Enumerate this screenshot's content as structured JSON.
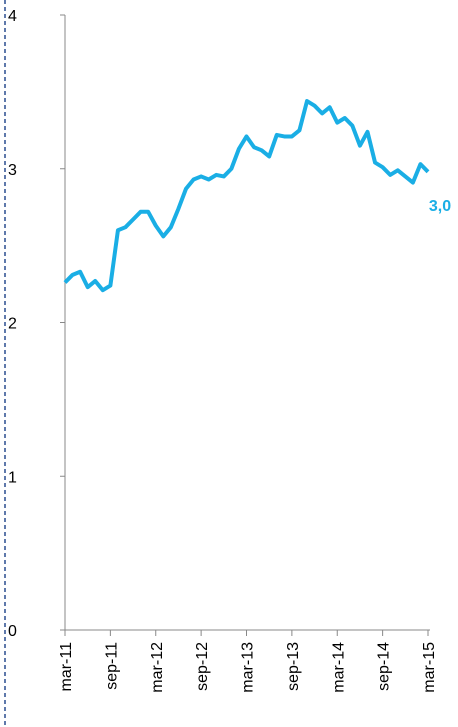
{
  "chart_data": {
    "type": "line",
    "categories": [
      "mar-11",
      null,
      null,
      null,
      null,
      null,
      "sep-11",
      null,
      null,
      null,
      null,
      null,
      "mar-12",
      null,
      null,
      null,
      null,
      null,
      "sep-12",
      null,
      null,
      null,
      null,
      null,
      "mar-13",
      null,
      null,
      null,
      null,
      null,
      "sep-13",
      null,
      null,
      null,
      null,
      null,
      "mar-14",
      null,
      null,
      null,
      null,
      null,
      "sep-14",
      null,
      null,
      null,
      null,
      null,
      "mar-15"
    ],
    "series": [
      {
        "color": "#1aaee5",
        "values": [
          2.26,
          2.31,
          2.33,
          2.23,
          2.27,
          2.21,
          2.24,
          2.6,
          2.62,
          2.67,
          2.72,
          2.72,
          2.63,
          2.56,
          2.62,
          2.74,
          2.87,
          2.93,
          2.95,
          2.93,
          2.96,
          2.95,
          3.0,
          3.13,
          3.21,
          3.14,
          3.12,
          3.08,
          3.22,
          3.21,
          3.21,
          3.25,
          3.44,
          3.41,
          3.36,
          3.4,
          3.3,
          3.33,
          3.28,
          3.15,
          3.24,
          3.04,
          3.01,
          2.96,
          2.99,
          2.95,
          2.91,
          3.03,
          2.98
        ],
        "value_labels": [
          null,
          null,
          null,
          null,
          null,
          null,
          null,
          null,
          null,
          null,
          null,
          null,
          null,
          null,
          null,
          null,
          null,
          null,
          null,
          null,
          null,
          null,
          null,
          null,
          null,
          null,
          null,
          null,
          null,
          null,
          null,
          null,
          null,
          null,
          null,
          null,
          null,
          null,
          null,
          null,
          null,
          null,
          null,
          null,
          null,
          null,
          null,
          null,
          "3,0"
        ]
      }
    ],
    "ylim": [
      0,
      4
    ],
    "yticks": [
      0,
      1,
      2,
      3,
      4
    ]
  }
}
